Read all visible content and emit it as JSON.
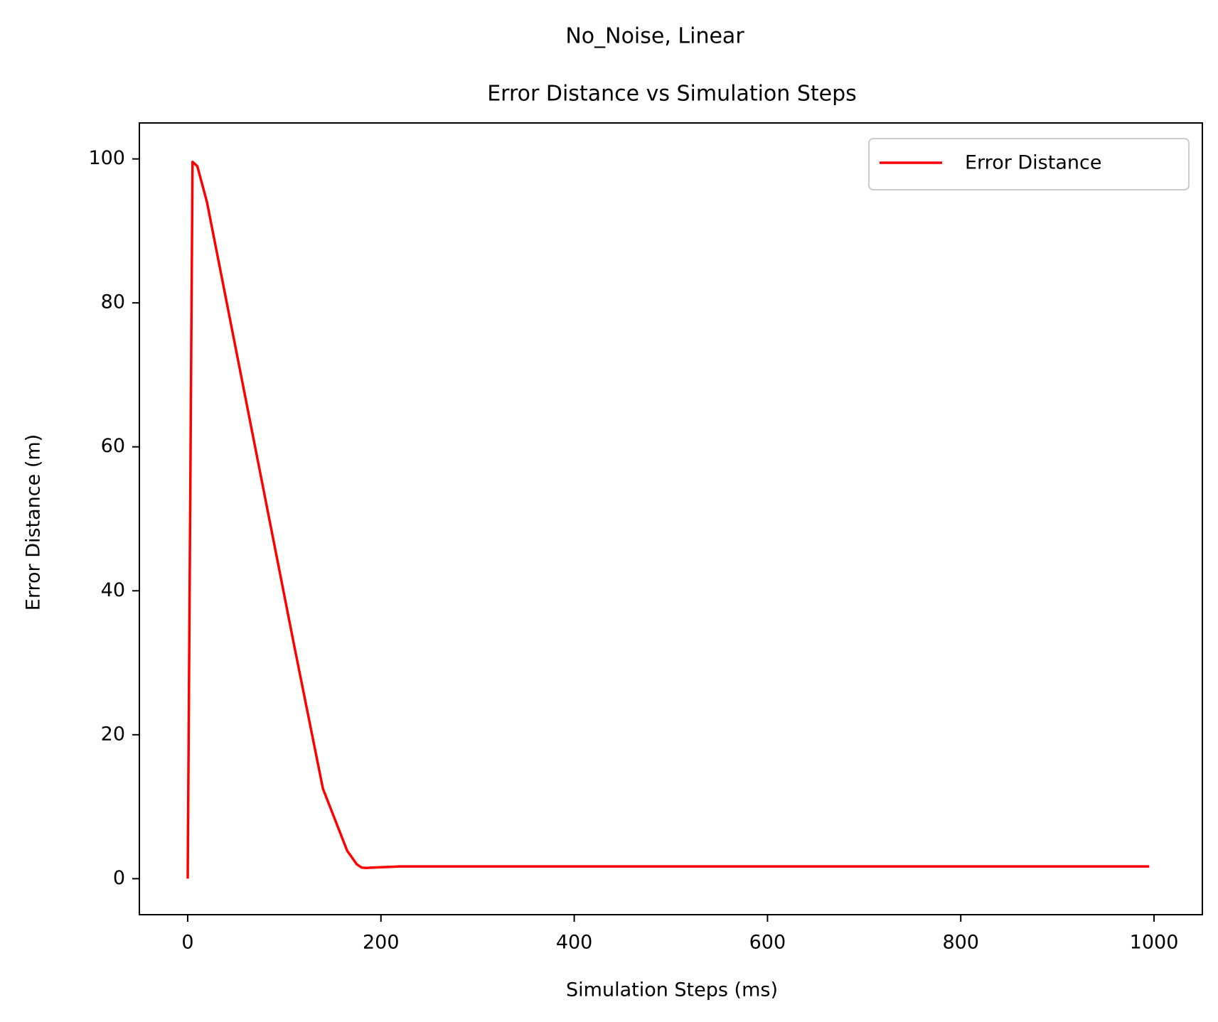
{
  "chart_data": {
    "type": "line",
    "suptitle": "No_Noise, Linear",
    "title": "Error Distance vs Simulation Steps",
    "xlabel": "Simulation Steps (ms)",
    "ylabel": "Error Distance (m)",
    "xlim": [
      -50,
      1050
    ],
    "ylim": [
      -5,
      105
    ],
    "xticks": [
      0,
      200,
      400,
      600,
      800,
      1000
    ],
    "xtick_labels": [
      "0",
      "200",
      "400",
      "600",
      "800",
      "1000"
    ],
    "yticks": [
      0,
      20,
      40,
      60,
      80,
      100
    ],
    "ytick_labels": [
      "0",
      "20",
      "40",
      "60",
      "80",
      "100"
    ],
    "grid": false,
    "legend": {
      "position": "top-right",
      "entries": [
        "Error Distance"
      ]
    },
    "series": [
      {
        "name": "Error Distance",
        "color": "#ff0000",
        "x": [
          0,
          4,
          5,
          10,
          20,
          50,
          80,
          110,
          140,
          165,
          175,
          180,
          185,
          190,
          200,
          220,
          400,
          600,
          800,
          995
        ],
        "y": [
          0,
          80,
          99.6,
          99.0,
          94.0,
          73.5,
          53.0,
          32.5,
          12.5,
          3.9,
          2.0,
          1.55,
          1.5,
          1.55,
          1.6,
          1.7,
          1.7,
          1.7,
          1.7,
          1.7
        ]
      }
    ]
  }
}
